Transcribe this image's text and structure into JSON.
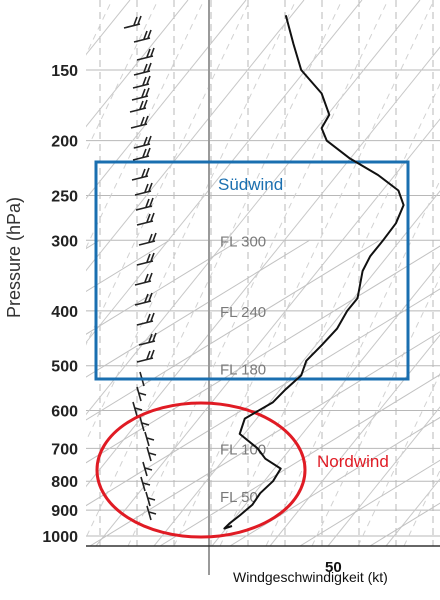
{
  "chart_data": {
    "type": "line",
    "title": "",
    "ylabel": "Pressure (hPa)",
    "xlabel": "Windgeschwindigkeit (kt)",
    "y_scale": "log",
    "y_inverted": true,
    "ylim": [
      1050,
      110
    ],
    "xlim": [
      -5,
      85
    ],
    "y_ticks": [
      150,
      200,
      250,
      300,
      400,
      500,
      600,
      700,
      800,
      900,
      1000
    ],
    "x_ticks": [
      50
    ],
    "grid": true,
    "series": [
      {
        "values": [
          {
            "p": 120,
            "kt": 30
          },
          {
            "p": 135,
            "kt": 33
          },
          {
            "p": 150,
            "kt": 36
          },
          {
            "p": 165,
            "kt": 44
          },
          {
            "p": 180,
            "kt": 47
          },
          {
            "p": 190,
            "kt": 44
          },
          {
            "p": 200,
            "kt": 46
          },
          {
            "p": 215,
            "kt": 55
          },
          {
            "p": 230,
            "kt": 66
          },
          {
            "p": 245,
            "kt": 74
          },
          {
            "p": 260,
            "kt": 76
          },
          {
            "p": 280,
            "kt": 73
          },
          {
            "p": 300,
            "kt": 68
          },
          {
            "p": 320,
            "kt": 63
          },
          {
            "p": 340,
            "kt": 60
          },
          {
            "p": 360,
            "kt": 59
          },
          {
            "p": 380,
            "kt": 58
          },
          {
            "p": 400,
            "kt": 54
          },
          {
            "p": 430,
            "kt": 50
          },
          {
            "p": 460,
            "kt": 44
          },
          {
            "p": 490,
            "kt": 38
          },
          {
            "p": 520,
            "kt": 36
          },
          {
            "p": 550,
            "kt": 30
          },
          {
            "p": 580,
            "kt": 25
          },
          {
            "p": 620,
            "kt": 14
          },
          {
            "p": 660,
            "kt": 12
          },
          {
            "p": 700,
            "kt": 19
          },
          {
            "p": 730,
            "kt": 22
          },
          {
            "p": 760,
            "kt": 28
          },
          {
            "p": 800,
            "kt": 25
          },
          {
            "p": 840,
            "kt": 20
          },
          {
            "p": 880,
            "kt": 17
          },
          {
            "p": 920,
            "kt": 12
          },
          {
            "p": 950,
            "kt": 8
          },
          {
            "p": 970,
            "kt": 6
          },
          {
            "p": 960,
            "kt": 9
          }
        ]
      }
    ],
    "flight_levels": [
      {
        "label": "FL 300",
        "p": 300
      },
      {
        "label": "FL 240",
        "p": 400
      },
      {
        "label": "FL 180",
        "p": 506
      },
      {
        "label": "FL 100",
        "p": 700
      },
      {
        "label": "FL 50",
        "p": 850
      }
    ],
    "annotations": [
      {
        "label": "Südwind",
        "shape": "rectangle",
        "color": "#1a6fb0",
        "p_range": [
          230,
          530
        ]
      },
      {
        "label": "Nordwind",
        "shape": "ellipse",
        "color": "#e01b24",
        "p_range": [
          590,
          990
        ]
      }
    ],
    "colors": {
      "profile": "#111111",
      "grid": "#b8b8b8",
      "sudwind": "#1a6fb0",
      "nordwind": "#e01b24"
    }
  }
}
